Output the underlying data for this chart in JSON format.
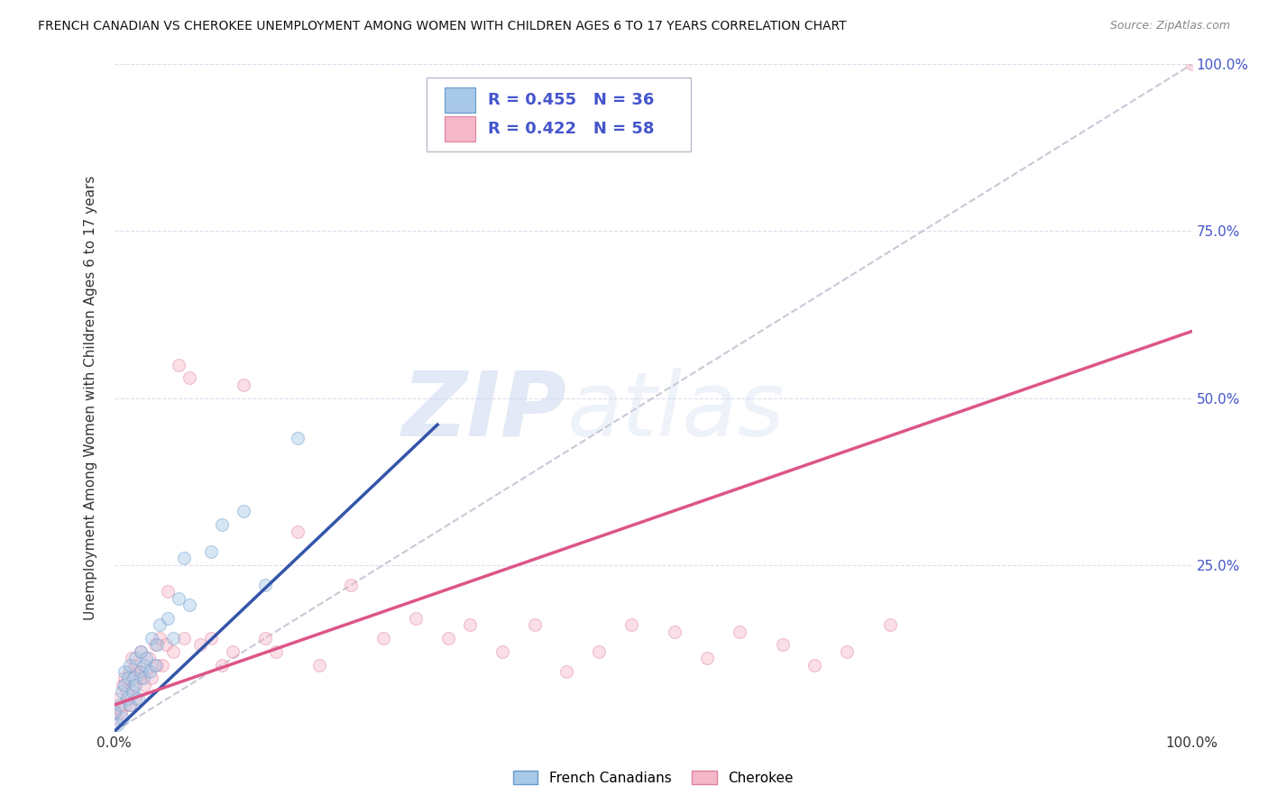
{
  "title": "FRENCH CANADIAN VS CHEROKEE UNEMPLOYMENT AMONG WOMEN WITH CHILDREN AGES 6 TO 17 YEARS CORRELATION CHART",
  "source": "Source: ZipAtlas.com",
  "ylabel": "Unemployment Among Women with Children Ages 6 to 17 years",
  "legend_label_1": "French Canadians",
  "legend_label_2": "Cherokee",
  "r1": 0.455,
  "n1": 36,
  "r2": 0.422,
  "n2": 58,
  "blue_color": "#a8c8e8",
  "blue_edge": "#6699cc",
  "pink_color": "#f5b8c8",
  "pink_edge": "#e080a0",
  "blue_line_color": "#3355aa",
  "pink_line_color": "#dd5588",
  "ref_line_color": "#bbbbcc",
  "axis_label_color": "#4455cc",
  "background_color": "#ffffff",
  "grid_color": "#ddddee",
  "title_color": "#111111",
  "blue_line_x": [
    0.0,
    0.3
  ],
  "blue_line_y": [
    0.0,
    0.46
  ],
  "pink_line_x": [
    0.0,
    1.0
  ],
  "pink_line_y": [
    0.04,
    0.6
  ],
  "ref_line_x": [
    0.0,
    1.0
  ],
  "ref_line_y": [
    0.0,
    1.0
  ],
  "blue_points_x": [
    0.0,
    0.003,
    0.005,
    0.007,
    0.008,
    0.01,
    0.01,
    0.012,
    0.013,
    0.015,
    0.015,
    0.017,
    0.018,
    0.02,
    0.02,
    0.022,
    0.025,
    0.025,
    0.027,
    0.028,
    0.03,
    0.033,
    0.035,
    0.038,
    0.04,
    0.042,
    0.05,
    0.055,
    0.06,
    0.065,
    0.07,
    0.09,
    0.1,
    0.12,
    0.14,
    0.17
  ],
  "blue_points_y": [
    0.03,
    0.01,
    0.04,
    0.06,
    0.02,
    0.07,
    0.09,
    0.05,
    0.08,
    0.04,
    0.1,
    0.06,
    0.08,
    0.07,
    0.11,
    0.05,
    0.09,
    0.12,
    0.08,
    0.1,
    0.11,
    0.09,
    0.14,
    0.1,
    0.13,
    0.16,
    0.17,
    0.14,
    0.2,
    0.26,
    0.19,
    0.27,
    0.31,
    0.33,
    0.22,
    0.44
  ],
  "pink_points_x": [
    0.0,
    0.002,
    0.004,
    0.006,
    0.008,
    0.01,
    0.01,
    0.012,
    0.014,
    0.015,
    0.016,
    0.018,
    0.02,
    0.02,
    0.022,
    0.025,
    0.025,
    0.028,
    0.03,
    0.032,
    0.035,
    0.038,
    0.04,
    0.042,
    0.045,
    0.048,
    0.05,
    0.055,
    0.06,
    0.065,
    0.07,
    0.08,
    0.09,
    0.1,
    0.11,
    0.12,
    0.14,
    0.15,
    0.17,
    0.19,
    0.22,
    0.25,
    0.28,
    0.31,
    0.33,
    0.36,
    0.39,
    0.42,
    0.45,
    0.48,
    0.52,
    0.55,
    0.58,
    0.62,
    0.65,
    0.68,
    0.72,
    1.0
  ],
  "pink_points_y": [
    0.03,
    0.02,
    0.05,
    0.03,
    0.07,
    0.04,
    0.08,
    0.06,
    0.09,
    0.04,
    0.11,
    0.07,
    0.05,
    0.1,
    0.09,
    0.08,
    0.12,
    0.07,
    0.09,
    0.11,
    0.08,
    0.13,
    0.1,
    0.14,
    0.1,
    0.13,
    0.21,
    0.12,
    0.55,
    0.14,
    0.53,
    0.13,
    0.14,
    0.1,
    0.12,
    0.52,
    0.14,
    0.12,
    0.3,
    0.1,
    0.22,
    0.14,
    0.17,
    0.14,
    0.16,
    0.12,
    0.16,
    0.09,
    0.12,
    0.16,
    0.15,
    0.11,
    0.15,
    0.13,
    0.1,
    0.12,
    0.16,
    1.0
  ],
  "xlim": [
    0.0,
    1.0
  ],
  "ylim": [
    0.0,
    1.0
  ],
  "xticks": [
    0.0,
    1.0
  ],
  "xticklabels": [
    "0.0%",
    "100.0%"
  ],
  "yticks_right": [
    0.25,
    0.5,
    0.75,
    1.0
  ],
  "yticklabels_right": [
    "25.0%",
    "50.0%",
    "75.0%",
    "100.0%"
  ],
  "marker_size": 100,
  "marker_alpha": 0.45,
  "watermark_zip": "ZIP",
  "watermark_atlas": "atlas",
  "watermark_color_zip": "#c8d4ee",
  "watermark_color_atlas": "#c8d4ee",
  "watermark_alpha": 0.5
}
